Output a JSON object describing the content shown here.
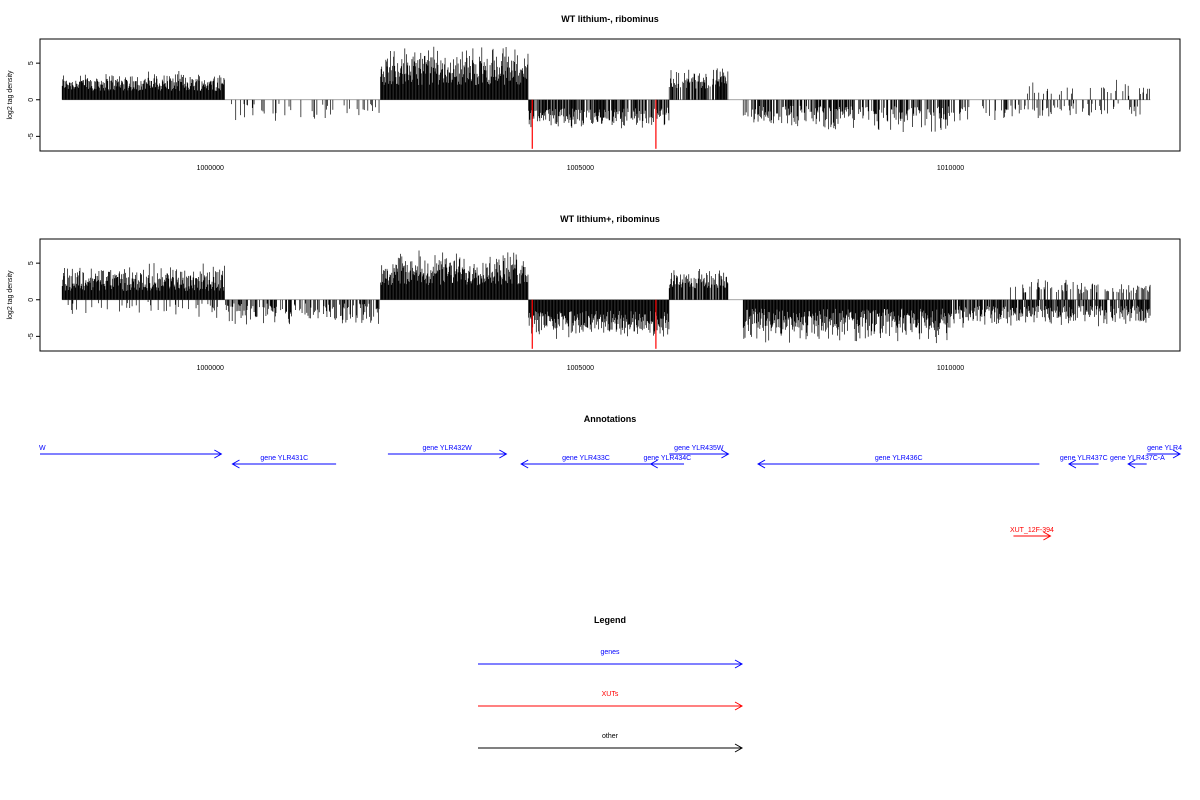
{
  "chart_data": [
    {
      "type": "bar",
      "title": "WT lithium-, ribominus",
      "ylabel": "log2 tag density",
      "xlabel": "",
      "xlim": [
        997700,
        1013100
      ],
      "ylim": [
        -7,
        8.3
      ],
      "yticks": [
        -5,
        0,
        5
      ],
      "yticklabels": [
        "-5",
        "0",
        "5"
      ],
      "xticks": [
        1000000,
        1005000,
        1010000
      ],
      "xticklabels": [
        "1000000",
        "1005000",
        "1010000"
      ],
      "colors": {
        "default": "#000000",
        "highlight": "#ff0000"
      },
      "segments": [
        {
          "from": 998000,
          "to": 1000200,
          "sign": 1,
          "lo": 1.2,
          "hi": 4.0,
          "density": 1.0
        },
        {
          "from": 1000200,
          "to": 1002300,
          "sign": -1,
          "lo": 0.5,
          "hi": 3.5,
          "density": 0.18
        },
        {
          "from": 1002300,
          "to": 1004300,
          "sign": 1,
          "lo": 2.0,
          "hi": 7.8,
          "density": 1.0
        },
        {
          "from": 1004300,
          "to": 1005500,
          "sign": -1,
          "lo": 1.2,
          "hi": 4.2,
          "density": 0.8
        },
        {
          "from": 1005500,
          "to": 1006200,
          "sign": -1,
          "lo": 1.0,
          "hi": 4.0,
          "density": 0.7
        },
        {
          "from": 1006200,
          "to": 1007000,
          "sign": 1,
          "lo": 1.5,
          "hi": 4.5,
          "density": 0.8
        },
        {
          "from": 1007200,
          "to": 1010000,
          "sign": -1,
          "lo": 0.8,
          "hi": 4.6,
          "density": 0.6
        },
        {
          "from": 1010000,
          "to": 1012600,
          "sign": -1,
          "lo": 0.5,
          "hi": 3.2,
          "density": 0.25
        },
        {
          "from": 1011000,
          "to": 1012700,
          "sign": 1,
          "lo": 0.5,
          "hi": 3.0,
          "density": 0.12
        }
      ],
      "highlights": [
        {
          "x": 1004350,
          "y": -6.7
        },
        {
          "x": 1006020,
          "y": -6.7
        }
      ]
    },
    {
      "type": "bar",
      "title": "WT lithium+, ribominus",
      "ylabel": "log2 tag density",
      "xlabel": "",
      "xlim": [
        997700,
        1013100
      ],
      "ylim": [
        -7,
        8.3
      ],
      "yticks": [
        -5,
        0,
        5
      ],
      "yticklabels": [
        "-5",
        "0",
        "5"
      ],
      "xticks": [
        1000000,
        1005000,
        1010000
      ],
      "xticklabels": [
        "1000000",
        "1005000",
        "1010000"
      ],
      "colors": {
        "default": "#000000",
        "highlight": "#ff0000"
      },
      "segments": [
        {
          "from": 998000,
          "to": 1000200,
          "sign": 1,
          "lo": 1.2,
          "hi": 5.2,
          "density": 1.0
        },
        {
          "from": 998000,
          "to": 1000200,
          "sign": -1,
          "lo": 0.3,
          "hi": 2.5,
          "density": 0.15
        },
        {
          "from": 1000200,
          "to": 1002300,
          "sign": -1,
          "lo": 0.5,
          "hi": 3.8,
          "density": 0.5
        },
        {
          "from": 1002300,
          "to": 1004300,
          "sign": 1,
          "lo": 2.0,
          "hi": 7.0,
          "density": 1.0
        },
        {
          "from": 1004300,
          "to": 1006200,
          "sign": -1,
          "lo": 1.5,
          "hi": 5.5,
          "density": 1.0
        },
        {
          "from": 1006200,
          "to": 1007000,
          "sign": 1,
          "lo": 1.5,
          "hi": 4.5,
          "density": 0.85
        },
        {
          "from": 1007200,
          "to": 1010000,
          "sign": -1,
          "lo": 1.2,
          "hi": 6.2,
          "density": 1.0
        },
        {
          "from": 1010000,
          "to": 1012700,
          "sign": -1,
          "lo": 0.8,
          "hi": 4.0,
          "density": 0.8
        },
        {
          "from": 1010800,
          "to": 1012700,
          "sign": 1,
          "lo": 0.8,
          "hi": 3.0,
          "density": 0.35
        }
      ],
      "highlights": [
        {
          "x": 1004350,
          "y": -6.7
        },
        {
          "x": 1006020,
          "y": -6.7
        }
      ]
    }
  ],
  "annotations": {
    "title": "Annotations",
    "items": [
      {
        "label": "W",
        "from": 997700,
        "to": 1000150,
        "strand": "+",
        "color": "#0000ff",
        "row": 0
      },
      {
        "label": "gene YLR431C",
        "from": 1000300,
        "to": 1001700,
        "strand": "-",
        "color": "#0000ff",
        "row": 1
      },
      {
        "label": "gene YLR432W",
        "from": 1002400,
        "to": 1004000,
        "strand": "+",
        "color": "#0000ff",
        "row": 0
      },
      {
        "label": "gene YLR433C",
        "from": 1004200,
        "to": 1005950,
        "strand": "-",
        "color": "#0000ff",
        "row": 1
      },
      {
        "label": "gene YLR434C",
        "from": 1005950,
        "to": 1006400,
        "strand": "-",
        "color": "#0000ff",
        "row": 1
      },
      {
        "label": "gene YLR435W",
        "from": 1006200,
        "to": 1007000,
        "strand": "+",
        "color": "#0000ff",
        "row": 0
      },
      {
        "label": "gene YLR436C",
        "from": 1007400,
        "to": 1011200,
        "strand": "-",
        "color": "#0000ff",
        "row": 1
      },
      {
        "label": "gene YLR437C",
        "from": 1011600,
        "to": 1012000,
        "strand": "-",
        "color": "#0000ff",
        "row": 1
      },
      {
        "label": "gene YLR437C-A",
        "from": 1012400,
        "to": 1012650,
        "strand": "-",
        "color": "#0000ff",
        "row": 1
      },
      {
        "label": "gene YLR4",
        "from": 1012650,
        "to": 1013100,
        "strand": "+",
        "color": "#0000ff",
        "row": 0
      },
      {
        "label": "XUT_12F-394",
        "from": 1010850,
        "to": 1011350,
        "strand": "+",
        "color": "#ff0000",
        "row": 3
      }
    ]
  },
  "legend": {
    "title": "Legend",
    "items": [
      {
        "label": "genes",
        "color": "#0000ff"
      },
      {
        "label": "XUTs",
        "color": "#ff0000"
      },
      {
        "label": "other",
        "color": "#000000"
      }
    ]
  }
}
